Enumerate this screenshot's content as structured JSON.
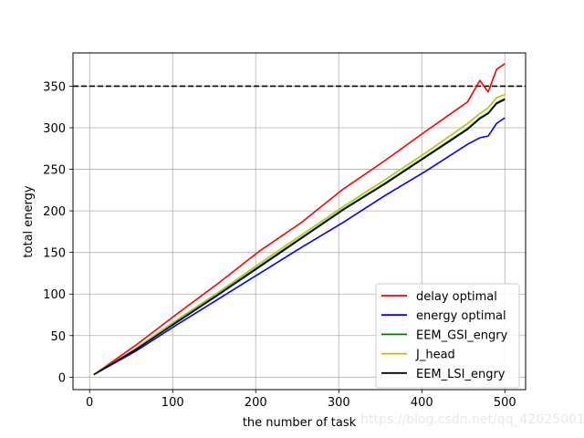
{
  "chart_data": {
    "type": "line",
    "title": "",
    "xlabel": "the number of task",
    "ylabel": "total energy",
    "xlim": [
      -20,
      525
    ],
    "ylim": [
      -15,
      390
    ],
    "xticks": [
      "0",
      "100",
      "200",
      "300",
      "400",
      "500"
    ],
    "yticks": [
      "0",
      "50",
      "100",
      "150",
      "200",
      "250",
      "300",
      "350"
    ],
    "grid": true,
    "legend_position": "lower right",
    "reference_line": {
      "y": 350,
      "style": "dashed",
      "color": "#000000"
    },
    "x": [
      5,
      55,
      105,
      155,
      205,
      255,
      305,
      355,
      405,
      455,
      470,
      480,
      490,
      500
    ],
    "series": [
      {
        "name": "delay optimal",
        "color": "#ff0000",
        "values": [
          3,
          38,
          76,
          113,
          152,
          186,
          226,
          260,
          296,
          331,
          357,
          343,
          370,
          377
        ]
      },
      {
        "name": "energy optimal",
        "color": "#0000ff",
        "values": [
          3,
          31,
          63,
          94,
          125,
          156,
          186,
          218,
          248,
          280,
          288,
          290,
          305,
          312
        ]
      },
      {
        "name": "EEM_GSI_engry",
        "color": "#008000",
        "values": [
          3,
          33,
          67,
          100,
          134,
          168,
          202,
          233,
          266,
          299,
          312,
          318,
          330,
          335
        ]
      },
      {
        "name": "J_head",
        "color": "#bfbf00",
        "values": [
          3,
          34,
          69,
          102,
          137,
          171,
          205,
          237,
          270,
          305,
          317,
          324,
          336,
          340
        ]
      },
      {
        "name": "EEM_LSI_engry",
        "color": "#000000",
        "values": [
          3,
          33,
          66,
          99,
          133,
          167,
          201,
          232,
          265,
          298,
          311,
          317,
          329,
          334
        ]
      }
    ]
  },
  "watermark": "https://blog.csdn.net/qq_42025001"
}
